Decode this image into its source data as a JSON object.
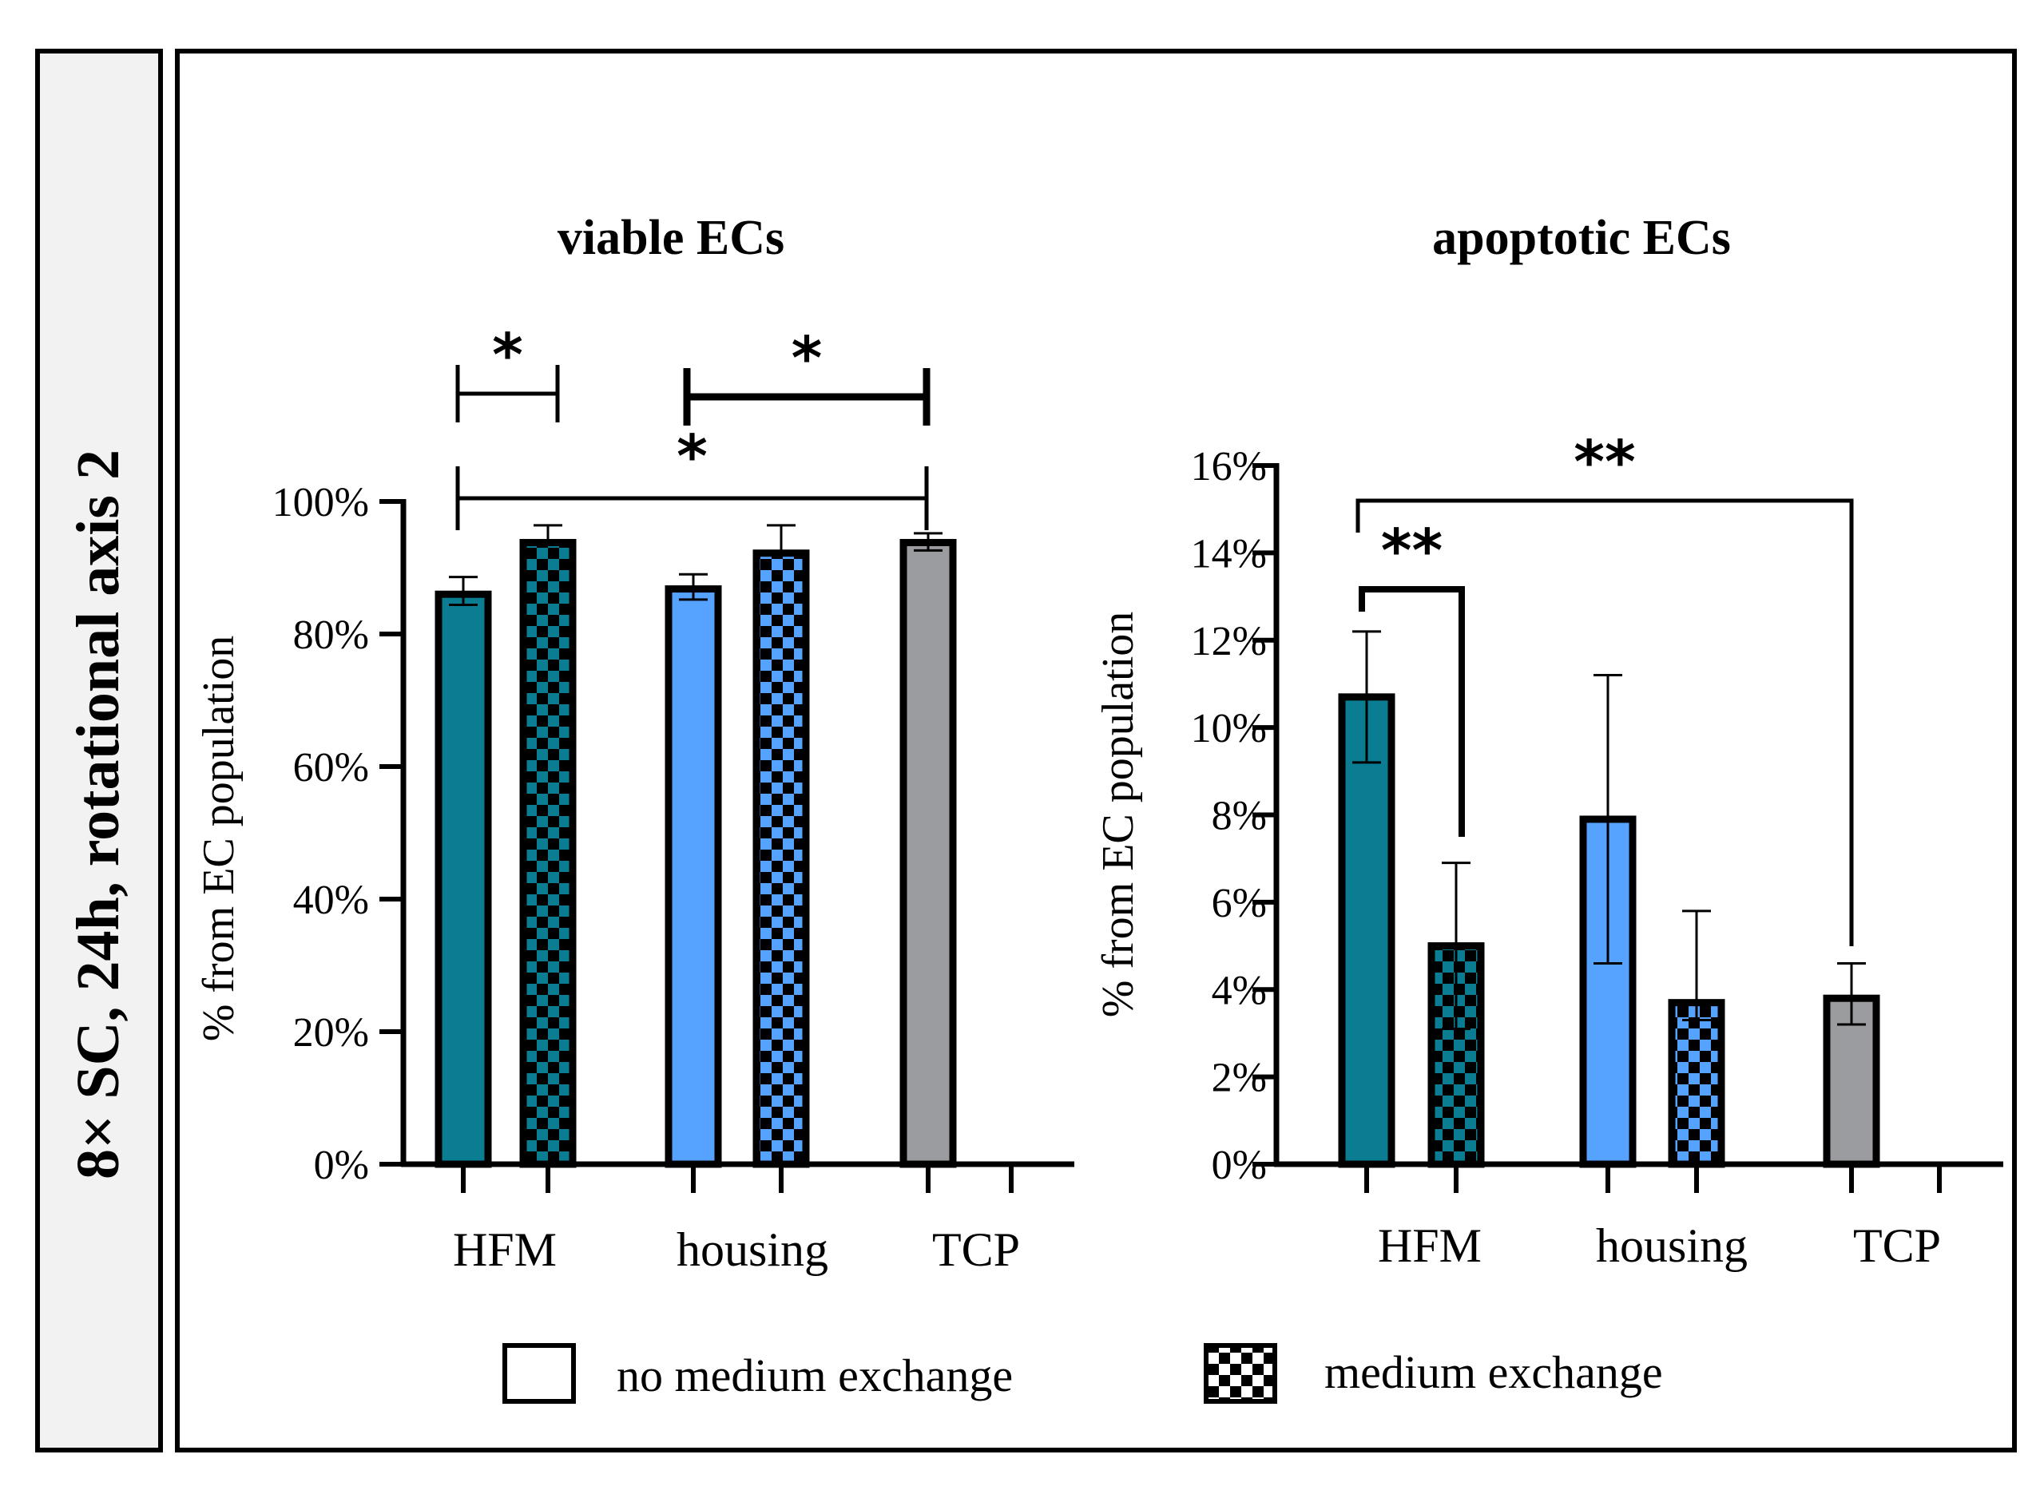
{
  "side_label": "8× SC, 24h, rotational axis 2",
  "colors": {
    "HFM": "#0b7d93",
    "housing": "#55a2ff",
    "TCP": "#9b9ca0",
    "frame": "#000000",
    "side_panel": "#f2f2f2"
  },
  "legend": {
    "items": [
      {
        "label": "no medium exchange",
        "pattern": "solid"
      },
      {
        "label": "medium exchange",
        "pattern": "checker"
      }
    ]
  },
  "chart_data": [
    {
      "type": "bar",
      "title": "viable ECs",
      "ylabel": "% from EC population",
      "xlabel": "",
      "ylim": [
        0,
        100
      ],
      "yticks": [
        0,
        20,
        40,
        60,
        80,
        100
      ],
      "ytick_labels": [
        "0%",
        "20%",
        "40%",
        "60%",
        "80%",
        "100%"
      ],
      "categories": [
        "HFM",
        "housing",
        "TCP"
      ],
      "series": [
        {
          "name": "no medium exchange",
          "values": [
            86,
            86.8,
            93.8
          ],
          "err_up": [
            2.6,
            2.2,
            1.4
          ],
          "err_down": [
            1.6,
            1.6,
            1.2
          ]
        },
        {
          "name": "medium exchange",
          "values": [
            93.8,
            92.2,
            null
          ],
          "err_up": [
            2.6,
            4.2,
            null
          ],
          "err_down": [
            0,
            0,
            null
          ]
        }
      ],
      "significance": [
        {
          "label": "*",
          "from": "HFM|no medium exchange",
          "to": "HFM|medium exchange"
        },
        {
          "label": "*",
          "from": "housing|no medium exchange",
          "to": "TCP|no medium exchange"
        },
        {
          "label": "*",
          "from": "HFM|no medium exchange",
          "to": "TCP|no medium exchange"
        }
      ]
    },
    {
      "type": "bar",
      "title": "apoptotic ECs",
      "ylabel": "% from EC population",
      "xlabel": "",
      "ylim": [
        0,
        16
      ],
      "yticks": [
        0,
        2,
        4,
        6,
        8,
        10,
        12,
        14,
        16
      ],
      "ytick_labels": [
        "0%",
        "2%",
        "4%",
        "6%",
        "8%",
        "10%",
        "12%",
        "14%",
        "16%"
      ],
      "categories": [
        "HFM",
        "housing",
        "TCP"
      ],
      "series": [
        {
          "name": "no medium exchange",
          "values": [
            10.7,
            7.9,
            3.8
          ],
          "err_up": [
            1.5,
            3.3,
            0.8
          ],
          "err_down": [
            1.5,
            3.3,
            0.6
          ]
        },
        {
          "name": "medium exchange",
          "values": [
            5.0,
            3.7,
            null
          ],
          "err_up": [
            1.9,
            2.1,
            null
          ],
          "err_down": [
            1.9,
            0.4,
            null
          ]
        }
      ],
      "significance": [
        {
          "label": "**",
          "from": "HFM|no medium exchange",
          "to": "HFM|medium exchange"
        },
        {
          "label": "**",
          "from": "HFM|no medium exchange",
          "to": "TCP|no medium exchange"
        }
      ]
    }
  ]
}
